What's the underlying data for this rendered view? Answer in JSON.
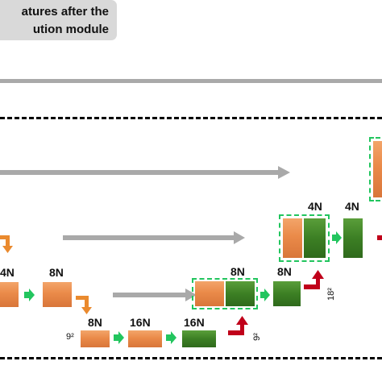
{
  "legend": {
    "line1": "atures after the",
    "line2": "ution module"
  },
  "labels": {
    "l4n_left": "4N",
    "l8n_a": "8N",
    "l8n_b": "8N",
    "l16n_a": "16N",
    "l16n_b": "16N",
    "l8n_concat": "8N",
    "l8n_dec": "8N",
    "l4n_concat": "4N",
    "l4n_dec": "4N"
  },
  "sizes": {
    "s9_a": "9²",
    "s9_b": "9²",
    "s18": "18²"
  },
  "colors": {
    "orange_arrow": "#ea8a2e",
    "green_arrow": "#22c55e",
    "red_arrow": "#c0001a",
    "skip_arrow": "#a9a9a9",
    "concat_border": "#22c55e"
  }
}
